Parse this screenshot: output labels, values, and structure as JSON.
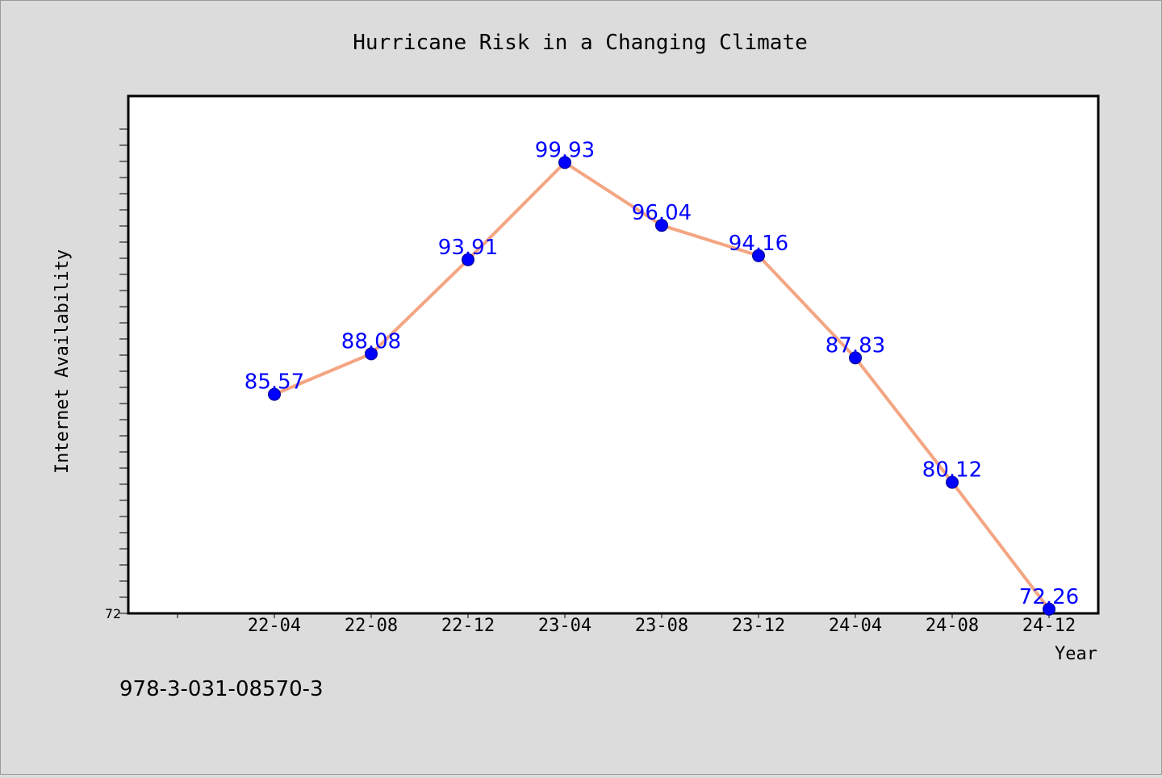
{
  "chart_data": {
    "type": "line",
    "title": "Hurricane Risk in a Changing Climate",
    "xlabel": "Year",
    "ylabel": "Internet Availability",
    "categories": [
      "22-04",
      "22-08",
      "22-12",
      "23-04",
      "23-08",
      "23-12",
      "24-04",
      "24-08",
      "24-12"
    ],
    "series": [
      {
        "values": [
          85.57,
          88.08,
          93.91,
          99.93,
          96.04,
          94.16,
          87.83,
          80.12,
          72.26
        ],
        "value_labels": [
          "85.57",
          "88.08",
          "93.91",
          "99.93",
          "96.04",
          "94.16",
          "87.83",
          "80.12",
          "72.26"
        ]
      }
    ],
    "ylim": [
      72,
      102
    ],
    "y_tick_labels": [
      "72"
    ],
    "grid": false,
    "legend": "none",
    "colors": {
      "line": "#f4a582",
      "marker": "#0000ff",
      "data_label": "#0000ff",
      "background": "#dcdcdc",
      "plot_background": "#ffffff",
      "text": "#000000"
    }
  },
  "footer_text": "978-3-031-08570-3"
}
